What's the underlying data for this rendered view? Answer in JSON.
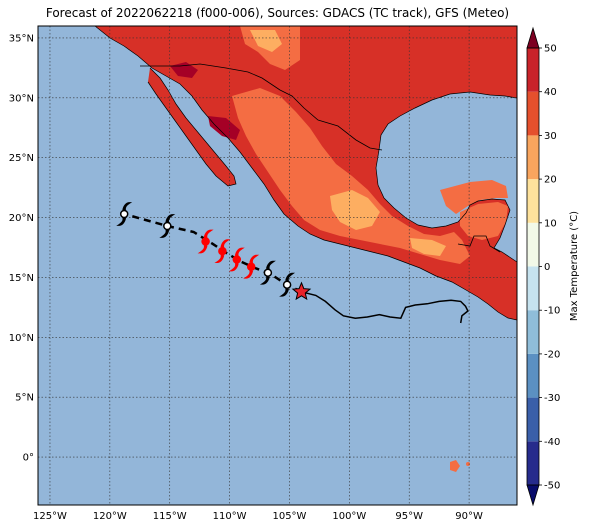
{
  "title": "Forecast of 2022062218 (f000-006), Sources: GDACS (TC track), GFS (Meteo)",
  "map": {
    "lon_range": [
      -126,
      -86
    ],
    "lat_range": [
      -4,
      36
    ],
    "lat_ticks": [
      {
        "value": 35,
        "label": "35°N"
      },
      {
        "value": 30,
        "label": "30°N"
      },
      {
        "value": 25,
        "label": "25°N"
      },
      {
        "value": 20,
        "label": "20°N"
      },
      {
        "value": 15,
        "label": "15°N"
      },
      {
        "value": 10,
        "label": "10°N"
      },
      {
        "value": 5,
        "label": "5°N"
      },
      {
        "value": 0,
        "label": "0°"
      }
    ],
    "lon_ticks": [
      {
        "value": -125,
        "label": "125°W"
      },
      {
        "value": -120,
        "label": "120°W"
      },
      {
        "value": -115,
        "label": "115°W"
      },
      {
        "value": -110,
        "label": "110°W"
      },
      {
        "value": -105,
        "label": "105°W"
      },
      {
        "value": -100,
        "label": "100°W"
      },
      {
        "value": -95,
        "label": "95°W"
      },
      {
        "value": -90,
        "label": "90°W"
      }
    ],
    "gridlines": true,
    "ocean_color": "#93b6d9",
    "past_track": [
      [
        -104.0,
        13.8
      ],
      [
        -102.8,
        13.5
      ],
      [
        -102.0,
        13.0
      ],
      [
        -101.2,
        12.3
      ],
      [
        -100.5,
        11.8
      ],
      [
        -99.5,
        11.6
      ],
      [
        -98.5,
        11.7
      ],
      [
        -97.5,
        11.9
      ],
      [
        -96.6,
        11.7
      ],
      [
        -95.7,
        11.6
      ],
      [
        -95.3,
        12.5
      ],
      [
        -94.5,
        12.7
      ],
      [
        -93.5,
        12.8
      ],
      [
        -92.5,
        13.0
      ],
      [
        -91.5,
        13.1
      ],
      [
        -90.7,
        13.0
      ],
      [
        -90.3,
        12.6
      ],
      [
        -90.1,
        12.2
      ],
      [
        -90.6,
        11.8
      ],
      [
        -90.7,
        11.2
      ]
    ],
    "current_position": [
      -104.0,
      13.8
    ],
    "forecast_track": [
      [
        -104.0,
        13.8
      ],
      [
        -105.2,
        14.4
      ],
      [
        -106.6,
        15.3
      ],
      [
        -107.9,
        15.8
      ],
      [
        -109.0,
        16.3
      ],
      [
        -110.2,
        17.0
      ],
      [
        -111.4,
        17.8
      ],
      [
        -113.0,
        18.8
      ],
      [
        -115.2,
        19.3
      ],
      [
        -118.8,
        20.3
      ]
    ],
    "storm_markers": [
      {
        "lon": -105.2,
        "lat": 14.4,
        "color": "#ffffff"
      },
      {
        "lon": -106.8,
        "lat": 15.4,
        "color": "#ffffff"
      },
      {
        "lon": -108.2,
        "lat": 15.9,
        "color": "#ff0000"
      },
      {
        "lon": -109.4,
        "lat": 16.5,
        "color": "#ff0000"
      },
      {
        "lon": -110.6,
        "lat": 17.2,
        "color": "#ff0000"
      },
      {
        "lon": -112.0,
        "lat": 18.0,
        "color": "#ff0000"
      },
      {
        "lon": -115.2,
        "lat": 19.3,
        "color": "#ffffff"
      },
      {
        "lon": -118.8,
        "lat": 20.3,
        "color": "#ffffff"
      }
    ]
  },
  "colorbar": {
    "label": "Max Temperature (°C)",
    "min": -50,
    "max": 50,
    "ticks": [
      -50,
      -40,
      -30,
      -20,
      -10,
      0,
      10,
      20,
      30,
      40,
      50
    ],
    "bands": [
      {
        "from": -50,
        "to": -40,
        "color": "#262b8c"
      },
      {
        "from": -40,
        "to": -30,
        "color": "#3a5fa9"
      },
      {
        "from": -30,
        "to": -20,
        "color": "#5b90c2"
      },
      {
        "from": -20,
        "to": -10,
        "color": "#8fbdd9"
      },
      {
        "from": -10,
        "to": 0,
        "color": "#c6e3ef"
      },
      {
        "from": 0,
        "to": 10,
        "color": "#f2f9e8"
      },
      {
        "from": 10,
        "to": 20,
        "color": "#fee29c"
      },
      {
        "from": 20,
        "to": 30,
        "color": "#f9a55e"
      },
      {
        "from": 30,
        "to": 40,
        "color": "#e5502d"
      },
      {
        "from": 40,
        "to": 50,
        "color": "#c9232a"
      }
    ],
    "extend_low_color": "#080c6b",
    "extend_high_color": "#7c0021"
  },
  "colors": {
    "land_hot": "#d73027",
    "land_warm": "#f46d43",
    "land_mild": "#fdae61",
    "land_very_hot": "#a50026",
    "track": "#000000",
    "current_star": "#e8222a"
  }
}
